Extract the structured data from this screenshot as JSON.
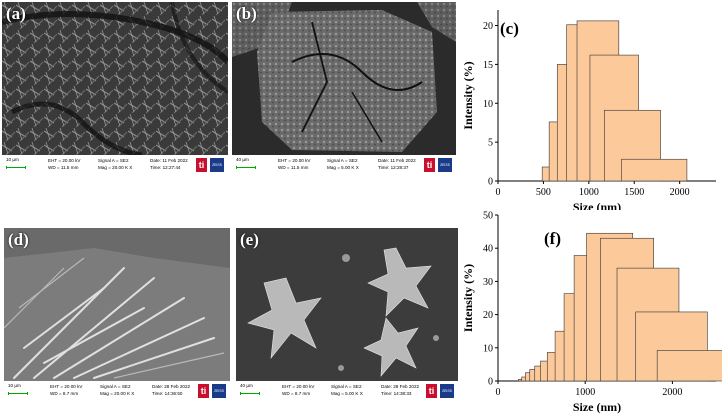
{
  "figure": {
    "panel_a": {
      "label": "(a)",
      "scale": "10 µm",
      "info1": "EHT = 20.00 kV",
      "info2": "WD = 11.5 mm",
      "info3": "Signal A = SE2",
      "info4": "Mag = 20.00 K X",
      "info5": "Date: 11 Feb 2022",
      "info6": "Time: 12:27:44"
    },
    "panel_b": {
      "label": "(b)",
      "scale": "40 µm",
      "info1": "EHT = 20.00 kV",
      "info2": "WD = 11.5 mm",
      "info3": "Signal A = SE2",
      "info4": "Mag = 5.00 K X",
      "info5": "Date: 11 Feb 2022",
      "info6": "Time: 12:28:37"
    },
    "panel_d": {
      "label": "(d)",
      "scale": "10 µm",
      "info1": "EHT = 20.00 kV",
      "info2": "WD = 8.7 mm",
      "info3": "Signal A = SE2",
      "info4": "Mag = 20.00 K X",
      "info5": "Date: 28 Feb 2022",
      "info6": "Time: 14:36:50"
    },
    "panel_e": {
      "label": "(e)",
      "scale": "40 µm",
      "info1": "EHT = 20.00 kV",
      "info2": "WD = 8.7 mm",
      "info3": "Signal A = SE2",
      "info4": "Mag = 5.00 K X",
      "info5": "Date: 28 Feb 2022",
      "info6": "Time: 14:38:33"
    },
    "logo_ti": "ti",
    "logo_zeiss": "ZEISS"
  },
  "chart_data": [
    {
      "panel": "(c)",
      "type": "bar",
      "xlabel": "Size (nm)",
      "ylabel": "Intensity (%)",
      "xlim": [
        0,
        2400
      ],
      "ylim": [
        0,
        22
      ],
      "xticks": [
        0,
        500,
        1000,
        1500,
        2000
      ],
      "yticks": [
        0,
        5,
        10,
        15,
        20
      ],
      "x": [
        615,
        712,
        825,
        955,
        1100,
        1280,
        1480,
        1720
      ],
      "values": [
        1.8,
        7.6,
        15.0,
        20.1,
        20.6,
        16.2,
        9.1,
        2.8
      ],
      "bar_color": "#fcc99a"
    },
    {
      "panel": "(f)",
      "type": "bar",
      "xlabel": "Size (nm)",
      "ylabel": "Intensity (%)",
      "xlim": [
        0,
        2500
      ],
      "ylim": [
        0,
        50
      ],
      "xticks": [
        0,
        1000,
        2000
      ],
      "yticks": [
        0,
        10,
        20,
        30,
        40,
        50
      ],
      "x": [
        295,
        342,
        396,
        459,
        531,
        615,
        712,
        825,
        955,
        1100,
        1280,
        1480,
        1720,
        1990,
        2300
      ],
      "values": [
        0.5,
        1.2,
        2.5,
        3.5,
        4.5,
        6.0,
        8.6,
        15.0,
        26.3,
        37.8,
        44.5,
        43.0,
        34.0,
        20.8,
        9.2
      ],
      "bar_color": "#fcc99a"
    }
  ]
}
